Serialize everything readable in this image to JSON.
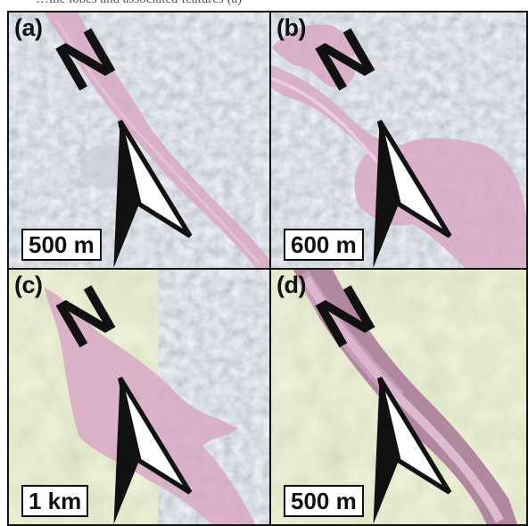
{
  "top_caption": "…the lobes and associated features (a)",
  "panels": [
    {
      "id": "a",
      "label": "(a)",
      "scale": "500 m",
      "north": "N",
      "terrain": "gray"
    },
    {
      "id": "b",
      "label": "(b)",
      "scale": "600 m",
      "north": "N",
      "terrain": "gray"
    },
    {
      "id": "c",
      "label": "(c)",
      "scale": "1 km",
      "north": "N",
      "terrain": "mixed"
    },
    {
      "id": "d",
      "label": "(d)",
      "scale": "500 m",
      "north": "N",
      "terrain": "green"
    }
  ],
  "colors": {
    "gray_terrain": "#b9bfc6",
    "green_terrain": "#c3cc9e",
    "pink_overlay": "#d9a9c8",
    "dark_pink": "#a06c90",
    "frame": "#111111"
  },
  "icons": [
    "north-arrow-icon"
  ]
}
